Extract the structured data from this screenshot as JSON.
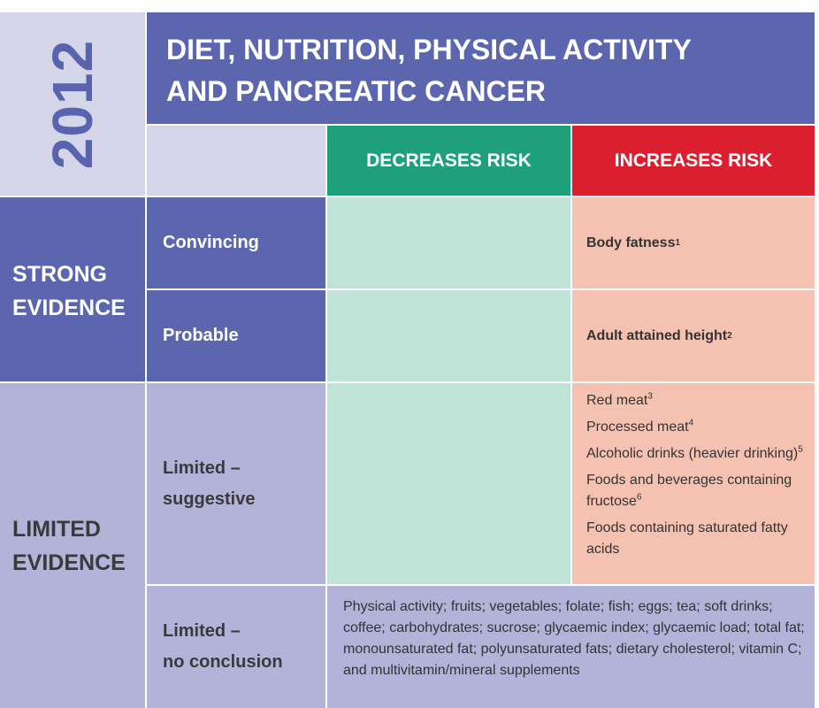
{
  "year": "2012",
  "title": {
    "line1": "DIET, NUTRITION, PHYSICAL ACTIVITY",
    "line2": "AND PANCREATIC CANCER"
  },
  "columns": {
    "decreases": "DECREASES RISK",
    "increases": "INCREASES RISK"
  },
  "strong_evidence": {
    "label_line1": "STRONG",
    "label_line2": "EVIDENCE",
    "convincing": {
      "label": "Convincing",
      "increases": {
        "text": "Body fatness",
        "sup": "1"
      }
    },
    "probable": {
      "label": "Probable",
      "increases": {
        "text": "Adult attained height",
        "sup": "2"
      }
    }
  },
  "limited_evidence": {
    "label_line1": "LIMITED",
    "label_line2": "EVIDENCE",
    "suggestive": {
      "label_line1": "Limited –",
      "label_line2": "suggestive",
      "increases": [
        {
          "text": "Red meat",
          "sup": "3"
        },
        {
          "text": "Processed meat",
          "sup": "4"
        },
        {
          "text": "Alcoholic drinks (heavier drinking)",
          "sup": "5"
        },
        {
          "text": "Foods and beverages containing fructose",
          "sup": "6"
        },
        {
          "text": "Foods containing saturated fatty acids",
          "sup": ""
        }
      ]
    },
    "no_conclusion": {
      "label_line1": "Limited –",
      "label_line2": "no conclusion",
      "text": "Physical activity; fruits; vegetables; folate; fish; eggs; tea; soft drinks; coffee; carbohydrates; sucrose; glycaemic index; glycaemic load; total fat; monounsaturated fat; polyunsaturated fats; dietary cholesterol; vitamin C; and multivitamin/mineral supplements"
    }
  },
  "colors": {
    "dark_blue": "#5b66ae",
    "light_blue": "#b1b3d9",
    "pale_blue": "#d5d5ea",
    "green_header": "#1ea17a",
    "red_header": "#da1f2f",
    "green_cell": "#bfe4d7",
    "pink_cell": "#f5c2b1"
  }
}
